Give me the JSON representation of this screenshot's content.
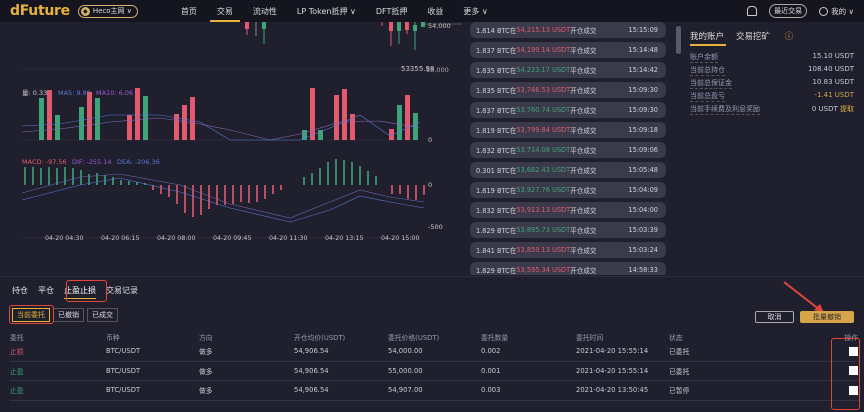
{
  "header": {
    "logo": "dFuture",
    "network": "Heco主网 ∨",
    "nav": [
      {
        "label": "首页"
      },
      {
        "label": "交易",
        "active": true
      },
      {
        "label": "流动性"
      },
      {
        "label": "LP Token抵押 ∨"
      },
      {
        "label": "DFT抵押"
      },
      {
        "label": "收益"
      },
      {
        "label": "更多 ∨"
      }
    ],
    "recent": "最近交易",
    "mine": "我的 ∨"
  },
  "chart": {
    "price_ticks": [
      "54,000",
      "53,000"
    ],
    "low_label": "53355.98",
    "volume_legend": {
      "vol": "量: 0.33",
      "ma5": "MA5: 9.89",
      "ma10": "MA10: 6.06"
    },
    "volume_zero": "0",
    "macd_legend": {
      "macd": "MACD: -97.56",
      "dif": "DIF: -255.14",
      "dea": "DEA: -206.36"
    },
    "macd_ticks": [
      "0",
      "-500"
    ],
    "time_ticks": [
      "04-20 04:30",
      "04-20 06:15",
      "04-20 08:00",
      "04-20 09:45",
      "04-20 11:30",
      "04-20 13:15",
      "04-20 15:00"
    ]
  },
  "trades": [
    {
      "qty": "1.814 BTC在",
      "price": "54,215.13 USDT",
      "dir": "red",
      "type": "开仓成交",
      "time": "15:15:09"
    },
    {
      "qty": "1.837 BTC在",
      "price": "54,199.14 USDT",
      "dir": "red",
      "type": "平仓成交",
      "time": "15:14:48"
    },
    {
      "qty": "1.835 BTC在",
      "price": "54,223.17 USDT",
      "dir": "green",
      "type": "平仓成交",
      "time": "15:14:42"
    },
    {
      "qty": "1.835 BTC在",
      "price": "53,746.53 USDT",
      "dir": "red",
      "type": "开仓成交",
      "time": "15:09:30"
    },
    {
      "qty": "1.837 BTC在",
      "price": "53,760.74 USDT",
      "dir": "green",
      "type": "开仓成交",
      "time": "15:09:30"
    },
    {
      "qty": "1.819 BTC在",
      "price": "53,799.84 USDT",
      "dir": "red",
      "type": "平仓成交",
      "time": "15:09:18"
    },
    {
      "qty": "1.832 BTC在",
      "price": "53,714.08 USDT",
      "dir": "green",
      "type": "平仓成交",
      "time": "15:09:06"
    },
    {
      "qty": "0.301 BTC在",
      "price": "53,682.43 USDT",
      "dir": "green",
      "type": "开仓成交",
      "time": "15:05:48"
    },
    {
      "qty": "1.819 BTC在",
      "price": "53,927.76 USDT",
      "dir": "green",
      "type": "开仓成交",
      "time": "15:04:09"
    },
    {
      "qty": "1.832 BTC在",
      "price": "53,913.13 USDT",
      "dir": "red",
      "type": "开仓成交",
      "time": "15:04:00"
    },
    {
      "qty": "1.829 BTC在",
      "price": "53,895.73 USDT",
      "dir": "green",
      "type": "平仓成交",
      "time": "15:03:39"
    },
    {
      "qty": "1.841 BTC在",
      "price": "53,859.13 USDT",
      "dir": "red",
      "type": "平仓成交",
      "time": "15:03:24"
    },
    {
      "qty": "1.829 BTC在",
      "price": "53,595.34 USDT",
      "dir": "red",
      "type": "开仓成交",
      "time": "14:58:33"
    }
  ],
  "account": {
    "tabs": [
      "我的账户",
      "交易挖矿"
    ],
    "rows": [
      {
        "label": "账户余额",
        "value": "15.10 USDT"
      },
      {
        "label": "当前总持仓",
        "value": "108.40 USDT"
      },
      {
        "label": "当前总保证金",
        "value": "10.83 USDT"
      },
      {
        "label": "当前总盈亏",
        "value": "-1.41 USDT",
        "color": "#d6a54a"
      },
      {
        "label": "当前手续费及利息奖励",
        "value": "0 USDT",
        "action": "提取"
      }
    ]
  },
  "bottom": {
    "tabs": [
      "持仓",
      "平仓",
      "止盈止损",
      "交易记录"
    ],
    "subtabs": [
      "当前委托",
      "已撤销",
      "已成交"
    ],
    "cancel": "取消",
    "batch_cancel": "批量撤销",
    "columns": [
      "委托",
      "币种",
      "方向",
      "开仓均价(USDT)",
      "委托价格(USDT)",
      "委托数量",
      "委托时间",
      "状态",
      "操作"
    ],
    "rows": [
      {
        "type": "止损",
        "color": "#e35a6f",
        "pair": "BTC/USDT",
        "dir": "做多",
        "avg": "54,906.54",
        "price": "54,000.00",
        "qty": "0.002",
        "time": "2021-04-20 15:55:14",
        "status": "已委托"
      },
      {
        "type": "止盈",
        "color": "#3fa37a",
        "pair": "BTC/USDT",
        "dir": "做多",
        "avg": "54,906.54",
        "price": "55,000.00",
        "qty": "0.001",
        "time": "2021-04-20 15:55:14",
        "status": "已委托"
      },
      {
        "type": "止盈",
        "color": "#3fa37a",
        "pair": "BTC/USDT",
        "dir": "做多",
        "avg": "54,906.54",
        "price": "54,907.00",
        "qty": "0.003",
        "time": "2021-04-20 13:50:45",
        "status": "已暂停"
      }
    ]
  }
}
